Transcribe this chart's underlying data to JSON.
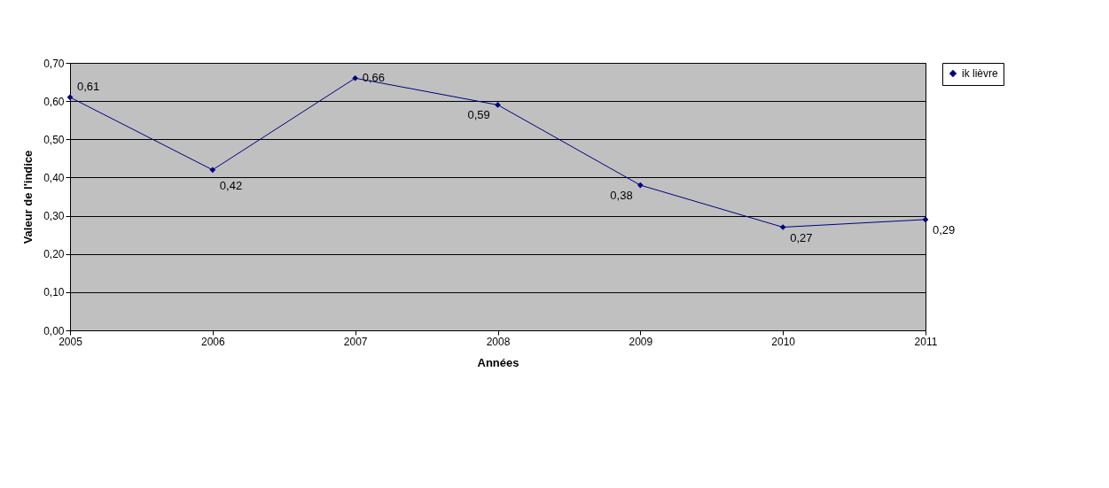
{
  "chart_data": {
    "type": "line",
    "xlabel": "Années",
    "ylabel": "Valeur de l'indice",
    "categories": [
      "2005",
      "2006",
      "2007",
      "2008",
      "2009",
      "2010",
      "2011"
    ],
    "series": [
      {
        "name": "ik lièvre",
        "color": "#000080",
        "values": [
          0.61,
          0.42,
          0.66,
          0.59,
          0.38,
          0.27,
          0.29
        ],
        "value_labels": [
          "0,61",
          "0,42",
          "0,66",
          "0,59",
          "0,38",
          "0,27",
          "0,29"
        ]
      }
    ],
    "ylim": [
      0,
      0.7
    ],
    "yticks": [
      {
        "value": 0,
        "label": "0,00"
      },
      {
        "value": 0.1,
        "label": "0,10"
      },
      {
        "value": 0.2,
        "label": "0,20"
      },
      {
        "value": 0.3,
        "label": "0,30"
      },
      {
        "value": 0.4,
        "label": "0,40"
      },
      {
        "value": 0.5,
        "label": "0,50"
      },
      {
        "value": 0.6,
        "label": "0,60"
      },
      {
        "value": 0.7,
        "label": "0,70"
      }
    ],
    "grid": "y",
    "legend": "right",
    "marker": "diamond",
    "line_style": "solid"
  }
}
